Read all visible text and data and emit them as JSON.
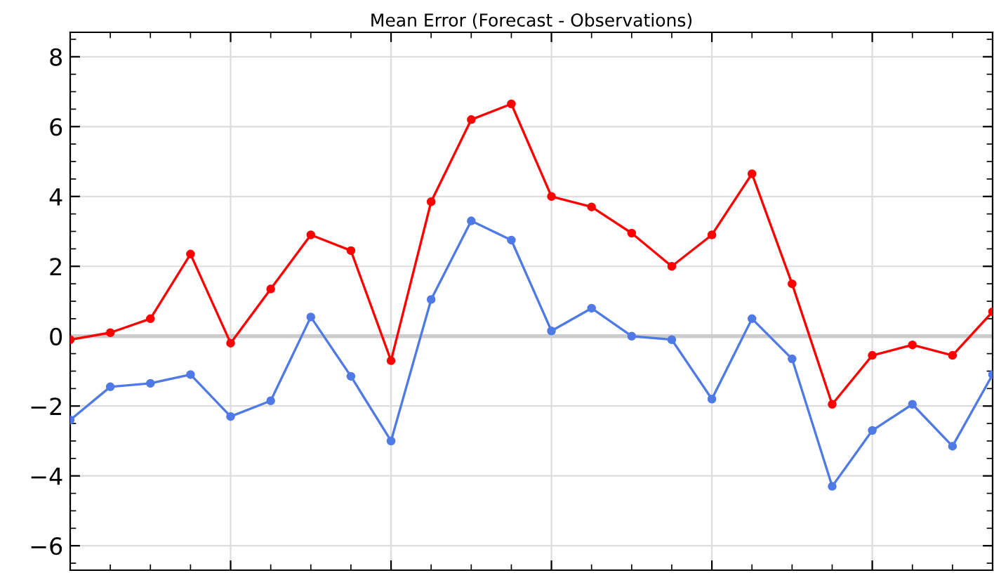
{
  "chart_data": {
    "type": "line",
    "title": "Mean Error (Forecast - Observations)",
    "categories": [
      null,
      null,
      null,
      null,
      null,
      null,
      null,
      null,
      null,
      null,
      null,
      null,
      null,
      null,
      null,
      null,
      null,
      null,
      null,
      null,
      null,
      null,
      null,
      null
    ],
    "series": [
      {
        "color": "#ff0000",
        "values": [
          -0.1,
          0.1,
          0.5,
          2.35,
          -0.2,
          1.35,
          2.9,
          2.45,
          -0.7,
          3.85,
          6.2,
          6.65,
          4.0,
          3.7,
          2.95,
          2.0,
          2.9,
          4.65,
          1.5,
          -1.95,
          -0.55,
          -0.25,
          -0.55,
          0.7
        ]
      },
      {
        "color": "#4f7ae6",
        "values": [
          -2.4,
          -1.45,
          -1.35,
          -1.1,
          -2.3,
          -1.85,
          0.55,
          -1.15,
          -3.0,
          1.05,
          3.3,
          2.75,
          0.15,
          0.8,
          0.0,
          -0.1,
          -1.8,
          0.5,
          -0.65,
          -4.3,
          -2.7,
          -1.95,
          -3.15,
          -1.1
        ]
      }
    ],
    "ylim": [
      -6.7,
      8.7
    ],
    "yticks": [
      {
        "value": -6,
        "label": "−6"
      },
      {
        "value": -4,
        "label": "−4"
      },
      {
        "value": -2,
        "label": "−2"
      },
      0,
      2,
      4,
      6,
      8
    ],
    "tick_labels": "y",
    "ref_lines": [
      {
        "axis": "y",
        "value": 0,
        "color": "#cccccc"
      }
    ],
    "grid": true,
    "marker": "circle",
    "line_style": "solid",
    "legend": false
  }
}
